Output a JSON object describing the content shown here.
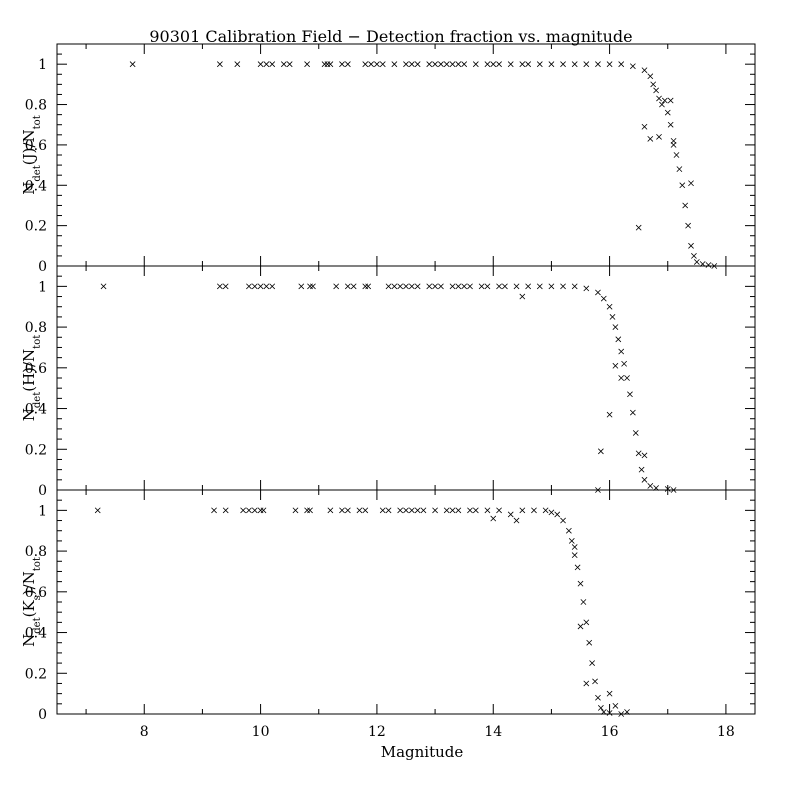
{
  "chart_data": {
    "type": "scatter",
    "title": "90301 Calibration Field − Detection fraction vs. magnitude",
    "xlabel": "Magnitude",
    "xlim": [
      6.5,
      18.5
    ],
    "x_ticks": [
      "8",
      "10",
      "12",
      "14",
      "16",
      "18"
    ],
    "ylim": [
      0,
      1.1
    ],
    "y_ticks": [
      "0",
      "0.2",
      "0.4",
      "0.6",
      "0.8",
      "1"
    ],
    "marker": "x",
    "panels": [
      {
        "name": "J",
        "ylabel_base": "N",
        "ylabel_sub1": "det",
        "ylabel_mid": "(J)/N",
        "ylabel_sub2": "tot",
        "points": [
          [
            7.8,
            1
          ],
          [
            9.3,
            1
          ],
          [
            9.6,
            1
          ],
          [
            10.0,
            1
          ],
          [
            10.1,
            1
          ],
          [
            10.2,
            1
          ],
          [
            10.4,
            1
          ],
          [
            10.5,
            1
          ],
          [
            10.8,
            1
          ],
          [
            11.1,
            1
          ],
          [
            11.15,
            1
          ],
          [
            11.2,
            1
          ],
          [
            11.4,
            1
          ],
          [
            11.5,
            1
          ],
          [
            11.8,
            1
          ],
          [
            11.9,
            1
          ],
          [
            12.0,
            1
          ],
          [
            12.1,
            1
          ],
          [
            12.3,
            1
          ],
          [
            12.5,
            1
          ],
          [
            12.6,
            1
          ],
          [
            12.7,
            1
          ],
          [
            12.9,
            1
          ],
          [
            13.0,
            1
          ],
          [
            13.1,
            1
          ],
          [
            13.2,
            1
          ],
          [
            13.3,
            1
          ],
          [
            13.4,
            1
          ],
          [
            13.5,
            1
          ],
          [
            13.7,
            1
          ],
          [
            13.9,
            1
          ],
          [
            14.0,
            1
          ],
          [
            14.1,
            1
          ],
          [
            14.3,
            1
          ],
          [
            14.5,
            1
          ],
          [
            14.6,
            1
          ],
          [
            14.8,
            1
          ],
          [
            15.0,
            1
          ],
          [
            15.2,
            1
          ],
          [
            15.4,
            1
          ],
          [
            15.6,
            1
          ],
          [
            15.8,
            1
          ],
          [
            16.0,
            1
          ],
          [
            16.2,
            1
          ],
          [
            16.4,
            0.99
          ],
          [
            16.6,
            0.97
          ],
          [
            16.7,
            0.94
          ],
          [
            16.75,
            0.9
          ],
          [
            16.8,
            0.87
          ],
          [
            16.85,
            0.83
          ],
          [
            16.9,
            0.8
          ],
          [
            16.95,
            0.82
          ],
          [
            17.0,
            0.76
          ],
          [
            17.05,
            0.7
          ],
          [
            17.1,
            0.62
          ],
          [
            17.15,
            0.55
          ],
          [
            17.2,
            0.48
          ],
          [
            17.25,
            0.4
          ],
          [
            17.3,
            0.3
          ],
          [
            17.35,
            0.2
          ],
          [
            17.4,
            0.1
          ],
          [
            17.45,
            0.05
          ],
          [
            17.5,
            0.02
          ],
          [
            17.6,
            0.01
          ],
          [
            17.7,
            0.005
          ],
          [
            17.8,
            0
          ],
          [
            16.6,
            0.69
          ],
          [
            16.7,
            0.63
          ],
          [
            16.85,
            0.64
          ],
          [
            16.5,
            0.19
          ],
          [
            17.4,
            0.41
          ],
          [
            17.05,
            0.82
          ],
          [
            17.1,
            0.6
          ]
        ]
      },
      {
        "name": "H",
        "ylabel_base": "N",
        "ylabel_sub1": "det",
        "ylabel_mid": "(H)/N",
        "ylabel_sub2": "tot",
        "points": [
          [
            7.3,
            1
          ],
          [
            9.3,
            1
          ],
          [
            9.4,
            1
          ],
          [
            9.8,
            1
          ],
          [
            9.9,
            1
          ],
          [
            10.0,
            1
          ],
          [
            10.1,
            1
          ],
          [
            10.2,
            1
          ],
          [
            10.7,
            1
          ],
          [
            10.85,
            1
          ],
          [
            10.9,
            1
          ],
          [
            11.3,
            1
          ],
          [
            11.5,
            1
          ],
          [
            11.6,
            1
          ],
          [
            11.8,
            1
          ],
          [
            11.85,
            1
          ],
          [
            12.2,
            1
          ],
          [
            12.3,
            1
          ],
          [
            12.4,
            1
          ],
          [
            12.5,
            1
          ],
          [
            12.6,
            1
          ],
          [
            12.7,
            1
          ],
          [
            12.9,
            1
          ],
          [
            13.0,
            1
          ],
          [
            13.1,
            1
          ],
          [
            13.3,
            1
          ],
          [
            13.4,
            1
          ],
          [
            13.5,
            1
          ],
          [
            13.6,
            1
          ],
          [
            13.8,
            1
          ],
          [
            13.9,
            1
          ],
          [
            14.1,
            1
          ],
          [
            14.2,
            1
          ],
          [
            14.4,
            1
          ],
          [
            14.5,
            0.95
          ],
          [
            14.6,
            1
          ],
          [
            14.8,
            1
          ],
          [
            15.0,
            1
          ],
          [
            15.2,
            1
          ],
          [
            15.4,
            1
          ],
          [
            15.6,
            0.99
          ],
          [
            15.8,
            0.97
          ],
          [
            15.9,
            0.94
          ],
          [
            16.0,
            0.9
          ],
          [
            16.05,
            0.85
          ],
          [
            16.1,
            0.8
          ],
          [
            16.15,
            0.74
          ],
          [
            16.2,
            0.68
          ],
          [
            16.25,
            0.62
          ],
          [
            16.3,
            0.55
          ],
          [
            16.35,
            0.47
          ],
          [
            16.4,
            0.38
          ],
          [
            16.45,
            0.28
          ],
          [
            16.5,
            0.18
          ],
          [
            16.55,
            0.1
          ],
          [
            16.6,
            0.05
          ],
          [
            16.7,
            0.02
          ],
          [
            16.8,
            0.01
          ],
          [
            17.0,
            0.005
          ],
          [
            17.1,
            0
          ],
          [
            16.1,
            0.61
          ],
          [
            16.0,
            0.37
          ],
          [
            15.85,
            0.19
          ],
          [
            16.2,
            0.55
          ],
          [
            16.6,
            0.17
          ],
          [
            15.8,
            0
          ]
        ]
      },
      {
        "name": "Ks",
        "ylabel_base": "N",
        "ylabel_sub1": "det",
        "ylabel_mid": "(K",
        "ylabel_sub3": "s",
        "ylabel_end": ")/N",
        "ylabel_sub2": "tot",
        "points": [
          [
            7.2,
            1
          ],
          [
            9.2,
            1
          ],
          [
            9.4,
            1
          ],
          [
            9.7,
            1
          ],
          [
            9.8,
            1
          ],
          [
            9.9,
            1
          ],
          [
            10.0,
            1
          ],
          [
            10.05,
            1
          ],
          [
            10.6,
            1
          ],
          [
            10.8,
            1
          ],
          [
            10.85,
            1
          ],
          [
            11.2,
            1
          ],
          [
            11.4,
            1
          ],
          [
            11.5,
            1
          ],
          [
            11.7,
            1
          ],
          [
            11.8,
            1
          ],
          [
            12.1,
            1
          ],
          [
            12.2,
            1
          ],
          [
            12.4,
            1
          ],
          [
            12.5,
            1
          ],
          [
            12.6,
            1
          ],
          [
            12.7,
            1
          ],
          [
            12.8,
            1
          ],
          [
            13.0,
            1
          ],
          [
            13.2,
            1
          ],
          [
            13.3,
            1
          ],
          [
            13.4,
            1
          ],
          [
            13.6,
            1
          ],
          [
            13.7,
            1
          ],
          [
            13.9,
            1
          ],
          [
            14.0,
            0.96
          ],
          [
            14.1,
            1
          ],
          [
            14.3,
            0.98
          ],
          [
            14.4,
            0.95
          ],
          [
            14.5,
            1
          ],
          [
            14.7,
            1
          ],
          [
            14.9,
            1
          ],
          [
            15.0,
            0.99
          ],
          [
            15.1,
            0.98
          ],
          [
            15.2,
            0.95
          ],
          [
            15.3,
            0.9
          ],
          [
            15.35,
            0.85
          ],
          [
            15.4,
            0.78
          ],
          [
            15.45,
            0.72
          ],
          [
            15.5,
            0.64
          ],
          [
            15.55,
            0.55
          ],
          [
            15.6,
            0.45
          ],
          [
            15.65,
            0.35
          ],
          [
            15.7,
            0.25
          ],
          [
            15.75,
            0.16
          ],
          [
            15.8,
            0.08
          ],
          [
            15.85,
            0.03
          ],
          [
            15.9,
            0.01
          ],
          [
            16.0,
            0.005
          ],
          [
            16.2,
            0
          ],
          [
            15.4,
            0.82
          ],
          [
            15.5,
            0.43
          ],
          [
            15.6,
            0.15
          ],
          [
            16.0,
            0.1
          ],
          [
            16.1,
            0.04
          ],
          [
            16.3,
            0.01
          ]
        ]
      }
    ]
  }
}
